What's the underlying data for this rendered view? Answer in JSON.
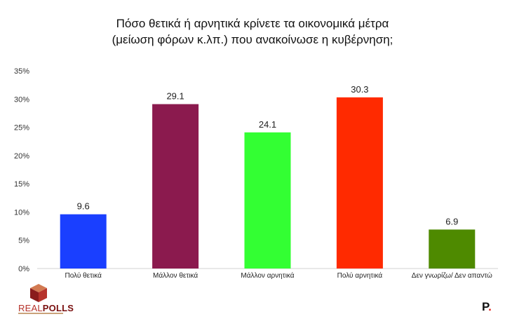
{
  "title_line1": "Πόσο θετικά ή αρνητικά κρίνετε τα οικονομικά μέτρα",
  "title_line2": "(μείωση φόρων κ.λπ.) που ανακοίνωσε η κυβέρνηση;",
  "logo": {
    "part1": "REAL",
    "part2": "POLLS"
  },
  "brand_mark": {
    "letter": "P",
    "dot": "."
  },
  "chart_data": {
    "type": "bar",
    "title": "Πόσο θετικά ή αρνητικά κρίνετε τα οικονομικά μέτρα (μείωση φόρων κ.λπ.) που ανακοίνωσε η κυβέρνηση;",
    "categories": [
      "Πολύ θετικά",
      "Μάλλον θετικά",
      "Μάλλον αρνητικά",
      "Πολύ αρνητικά",
      "Δεν γνωρίζω/ Δεν απαντώ"
    ],
    "values": [
      9.6,
      29.1,
      24.1,
      30.3,
      6.9
    ],
    "colors": [
      "#1a3fff",
      "#8b1a4e",
      "#33ff33",
      "#ff2a00",
      "#4e8a00"
    ],
    "value_labels": [
      "9.6",
      "29.1",
      "24.1",
      "30.3",
      "6.9"
    ],
    "yticks": [
      "0%",
      "5%",
      "10%",
      "15%",
      "20%",
      "25%",
      "30%",
      "35%"
    ],
    "ylim": [
      0,
      35
    ],
    "xlabel": "",
    "ylabel": "",
    "grid": false,
    "legend": "none"
  }
}
